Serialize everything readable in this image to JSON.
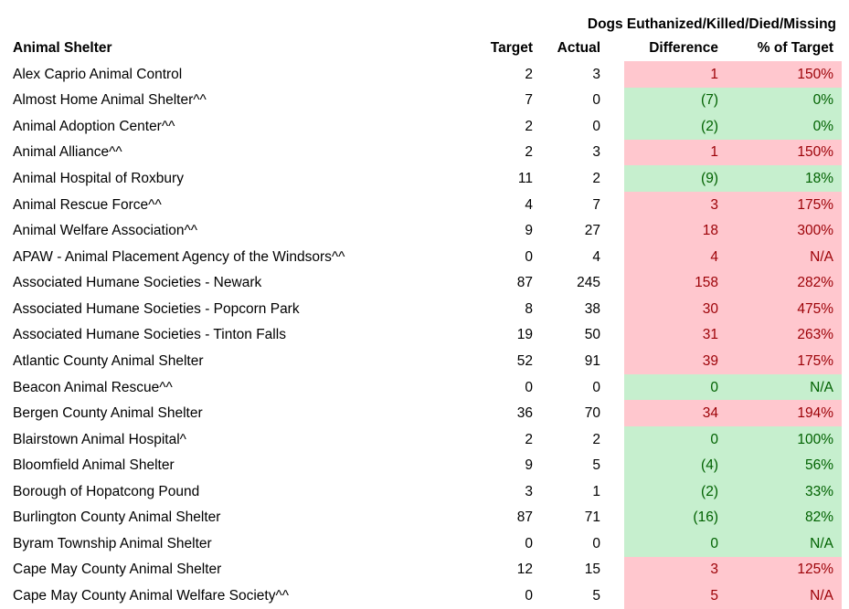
{
  "table": {
    "group_header": "Dogs Euthanized/Killed/Died/Missing",
    "columns": {
      "shelter": "Animal Shelter",
      "target": "Target",
      "actual": "Actual",
      "difference": "Difference",
      "pct_of_target": "% of Target"
    },
    "rows": [
      {
        "name": "Alex Caprio Animal Control",
        "target": "2",
        "actual": "3",
        "difference": "1",
        "pct_of_target": "150%",
        "status": "bad"
      },
      {
        "name": "Almost Home Animal Shelter^^",
        "target": "7",
        "actual": "0",
        "difference": "(7)",
        "pct_of_target": "0%",
        "status": "good"
      },
      {
        "name": "Animal Adoption Center^^",
        "target": "2",
        "actual": "0",
        "difference": "(2)",
        "pct_of_target": "0%",
        "status": "good"
      },
      {
        "name": "Animal Alliance^^",
        "target": "2",
        "actual": "3",
        "difference": "1",
        "pct_of_target": "150%",
        "status": "bad"
      },
      {
        "name": "Animal Hospital of Roxbury",
        "target": "11",
        "actual": "2",
        "difference": "(9)",
        "pct_of_target": "18%",
        "status": "good"
      },
      {
        "name": "Animal Rescue Force^^",
        "target": "4",
        "actual": "7",
        "difference": "3",
        "pct_of_target": "175%",
        "status": "bad"
      },
      {
        "name": "Animal Welfare Association^^",
        "target": "9",
        "actual": "27",
        "difference": "18",
        "pct_of_target": "300%",
        "status": "bad"
      },
      {
        "name": "APAW - Animal Placement Agency of the Windsors^^",
        "target": "0",
        "actual": "4",
        "difference": "4",
        "pct_of_target": "N/A",
        "status": "bad"
      },
      {
        "name": "Associated Humane Societies - Newark",
        "target": "87",
        "actual": "245",
        "difference": "158",
        "pct_of_target": "282%",
        "status": "bad"
      },
      {
        "name": "Associated Humane Societies - Popcorn Park",
        "target": "8",
        "actual": "38",
        "difference": "30",
        "pct_of_target": "475%",
        "status": "bad"
      },
      {
        "name": "Associated Humane Societies - Tinton Falls",
        "target": "19",
        "actual": "50",
        "difference": "31",
        "pct_of_target": "263%",
        "status": "bad"
      },
      {
        "name": "Atlantic County Animal Shelter",
        "target": "52",
        "actual": "91",
        "difference": "39",
        "pct_of_target": "175%",
        "status": "bad"
      },
      {
        "name": "Beacon Animal Rescue^^",
        "target": "0",
        "actual": "0",
        "difference": "0",
        "pct_of_target": "N/A",
        "status": "good"
      },
      {
        "name": "Bergen County Animal Shelter",
        "target": "36",
        "actual": "70",
        "difference": "34",
        "pct_of_target": "194%",
        "status": "bad"
      },
      {
        "name": "Blairstown Animal Hospital^",
        "target": "2",
        "actual": "2",
        "difference": "0",
        "pct_of_target": "100%",
        "status": "good"
      },
      {
        "name": "Bloomfield Animal Shelter",
        "target": "9",
        "actual": "5",
        "difference": "(4)",
        "pct_of_target": "56%",
        "status": "good"
      },
      {
        "name": "Borough of Hopatcong Pound",
        "target": "3",
        "actual": "1",
        "difference": "(2)",
        "pct_of_target": "33%",
        "status": "good"
      },
      {
        "name": "Burlington County Animal Shelter",
        "target": "87",
        "actual": "71",
        "difference": "(16)",
        "pct_of_target": "82%",
        "status": "good"
      },
      {
        "name": "Byram Township Animal Shelter",
        "target": "0",
        "actual": "0",
        "difference": "0",
        "pct_of_target": "N/A",
        "status": "good"
      },
      {
        "name": "Cape May County Animal Shelter",
        "target": "12",
        "actual": "15",
        "difference": "3",
        "pct_of_target": "125%",
        "status": "bad"
      },
      {
        "name": "Cape May County Animal Welfare Society^^",
        "target": "0",
        "actual": "5",
        "difference": "5",
        "pct_of_target": "N/A",
        "status": "bad"
      }
    ]
  },
  "colors": {
    "bad_bg": "#FFC7CE",
    "bad_text": "#9C0006",
    "good_bg": "#C6EFCE",
    "good_text": "#006100",
    "header_text": "#000000",
    "page_bg": "#FFFFFF"
  }
}
